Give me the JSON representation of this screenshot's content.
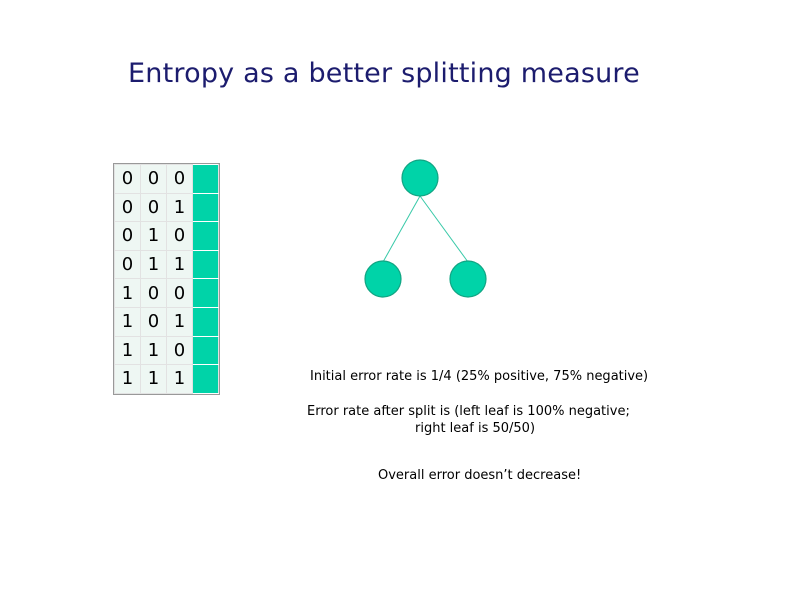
{
  "title": "Entropy as a better splitting measure",
  "table": {
    "rows": [
      [
        "0",
        "0",
        "0"
      ],
      [
        "0",
        "0",
        "1"
      ],
      [
        "0",
        "1",
        "0"
      ],
      [
        "0",
        "1",
        "1"
      ],
      [
        "1",
        "0",
        "0"
      ],
      [
        "1",
        "0",
        "1"
      ],
      [
        "1",
        "1",
        "0"
      ],
      [
        "1",
        "1",
        "1"
      ]
    ],
    "label_color": "#00d3a8"
  },
  "tree": {
    "node_color": "#00d3a8",
    "edge_color": "#38c9a8"
  },
  "text": {
    "initial_error": "Initial error rate is 1/4  (25% positive, 75% negative)",
    "after_split_1": "Error rate after split is   (left leaf is 100% negative;",
    "after_split_2": "right leaf is 50/50)",
    "overall": "Overall error doesn’t decrease!"
  }
}
